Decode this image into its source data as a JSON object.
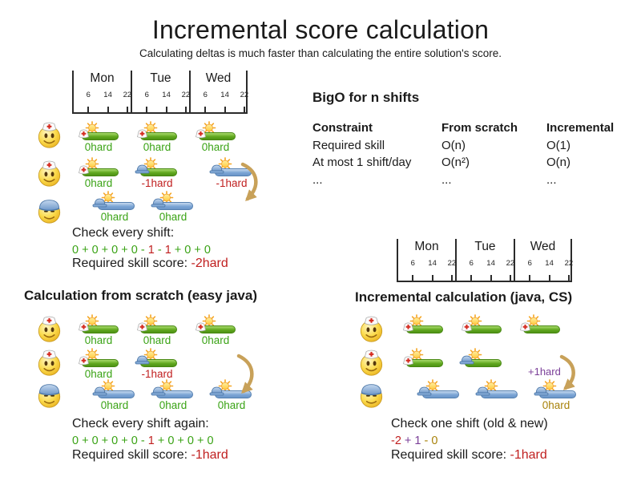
{
  "slide": {
    "title": "Incremental score calculation",
    "subtitle": "Calculating deltas is much faster than calculating the entire solution's score."
  },
  "timeline": {
    "days": [
      "Mon",
      "Tue",
      "Wed"
    ],
    "hours": [
      "6",
      "14",
      "22"
    ]
  },
  "bigo": {
    "heading": "BigO for n shifts",
    "columns": [
      "Constraint",
      "From scratch",
      "Incremental"
    ],
    "rows": [
      [
        "Required skill",
        "O(n)",
        "O(1)"
      ],
      [
        "At most 1 shift/day",
        "O(n²)",
        "O(n)"
      ],
      [
        "...",
        "...",
        "..."
      ]
    ]
  },
  "colors": {
    "ink": "#1b1b1b",
    "green": "#3aa315",
    "red": "#c01f1f",
    "purple": "#7b3f98",
    "gold": "#a8820a",
    "arrow": "#c8a159"
  },
  "panels": {
    "initial": {
      "heading": null,
      "annotation": null,
      "rows": [
        {
          "person": "nurse",
          "shifts": [
            {
              "day": 0,
              "slot": 0,
              "bar": "green",
              "hat": "cap",
              "label": "0hard",
              "color": "green"
            },
            {
              "day": 1,
              "slot": 0,
              "bar": "green",
              "hat": "cap",
              "label": "0hard",
              "color": "green"
            },
            {
              "day": 2,
              "slot": 0,
              "bar": "green",
              "hat": "cap",
              "label": "0hard",
              "color": "green"
            }
          ]
        },
        {
          "person": "nurse",
          "shifts": [
            {
              "day": 0,
              "slot": 0,
              "bar": "green",
              "hat": "cap",
              "label": "0hard",
              "color": "green"
            },
            {
              "day": 1,
              "slot": 0,
              "bar": "green",
              "hat": "helmet",
              "label": "-1hard",
              "color": "red"
            },
            {
              "day": 2,
              "slot": 1,
              "bar": "blue",
              "hat": "helmet",
              "label": "-1hard",
              "color": "red"
            }
          ]
        },
        {
          "person": "builder",
          "shifts": [
            {
              "day": 0,
              "slot": 1,
              "bar": "blue",
              "hat": "helmet",
              "label": "0hard",
              "color": "green"
            },
            {
              "day": 1,
              "slot": 1,
              "bar": "blue",
              "hat": "helmet",
              "label": "0hard",
              "color": "green"
            }
          ]
        }
      ],
      "lines": [
        {
          "size": "lg",
          "spans": [
            {
              "t": "Check every shift:",
              "c": "ink"
            }
          ]
        },
        {
          "size": "sm",
          "spans": [
            {
              "t": "0 + 0 + 0 + 0 - ",
              "c": "green"
            },
            {
              "t": "1",
              "c": "red"
            },
            {
              "t": " - ",
              "c": "green"
            },
            {
              "t": "1",
              "c": "red"
            },
            {
              "t": " + 0 + 0",
              "c": "green"
            }
          ]
        },
        {
          "size": "lg",
          "spans": [
            {
              "t": "Required skill score: ",
              "c": "ink"
            },
            {
              "t": "-2hard",
              "c": "red"
            }
          ]
        }
      ]
    },
    "scratch": {
      "heading": "Calculation from scratch (easy java)",
      "annotation": null,
      "rows": [
        {
          "person": "nurse",
          "shifts": [
            {
              "day": 0,
              "slot": 0,
              "bar": "green",
              "hat": "cap",
              "label": "0hard",
              "color": "green"
            },
            {
              "day": 1,
              "slot": 0,
              "bar": "green",
              "hat": "cap",
              "label": "0hard",
              "color": "green"
            },
            {
              "day": 2,
              "slot": 0,
              "bar": "green",
              "hat": "cap",
              "label": "0hard",
              "color": "green"
            }
          ]
        },
        {
          "person": "nurse",
          "shifts": [
            {
              "day": 0,
              "slot": 0,
              "bar": "green",
              "hat": "cap",
              "label": "0hard",
              "color": "green"
            },
            {
              "day": 1,
              "slot": 0,
              "bar": "green",
              "hat": "helmet",
              "label": "-1hard",
              "color": "red"
            }
          ]
        },
        {
          "person": "builder",
          "shifts": [
            {
              "day": 0,
              "slot": 1,
              "bar": "blue",
              "hat": "helmet",
              "label": "0hard",
              "color": "green"
            },
            {
              "day": 1,
              "slot": 1,
              "bar": "blue",
              "hat": "helmet",
              "label": "0hard",
              "color": "green"
            },
            {
              "day": 2,
              "slot": 1,
              "bar": "blue",
              "hat": "helmet",
              "label": "0hard",
              "color": "green"
            }
          ]
        }
      ],
      "lines": [
        {
          "size": "lg",
          "spans": [
            {
              "t": "Check every shift again:",
              "c": "ink"
            }
          ]
        },
        {
          "size": "sm",
          "spans": [
            {
              "t": "0 + 0 + 0 + 0 - ",
              "c": "green"
            },
            {
              "t": "1",
              "c": "red"
            },
            {
              "t": " + 0 + 0 + 0",
              "c": "green"
            }
          ]
        },
        {
          "size": "lg",
          "spans": [
            {
              "t": "Required skill score: ",
              "c": "ink"
            },
            {
              "t": "-1hard",
              "c": "red"
            }
          ]
        }
      ]
    },
    "incremental": {
      "heading": "Incremental calculation (java, CS)",
      "annotation": {
        "t": "+1hard",
        "c": "purple"
      },
      "rows": [
        {
          "person": "nurse",
          "shifts": [
            {
              "day": 0,
              "slot": 0,
              "bar": "green",
              "hat": "cap",
              "label": null,
              "color": null
            },
            {
              "day": 1,
              "slot": 0,
              "bar": "green",
              "hat": "cap",
              "label": null,
              "color": null
            },
            {
              "day": 2,
              "slot": 0,
              "bar": "green",
              "hat": "cap",
              "label": null,
              "color": null
            }
          ]
        },
        {
          "person": "nurse",
          "shifts": [
            {
              "day": 0,
              "slot": 0,
              "bar": "green",
              "hat": "cap",
              "label": null,
              "color": null
            },
            {
              "day": 1,
              "slot": 0,
              "bar": "green",
              "hat": "helmet",
              "label": null,
              "color": null
            }
          ]
        },
        {
          "person": "builder",
          "shifts": [
            {
              "day": 0,
              "slot": 1,
              "bar": "blue",
              "hat": "helmet",
              "label": null,
              "color": null
            },
            {
              "day": 1,
              "slot": 1,
              "bar": "blue",
              "hat": "helmet",
              "label": null,
              "color": null
            },
            {
              "day": 2,
              "slot": 1,
              "bar": "blue",
              "hat": "helmet",
              "label": "0hard",
              "color": "gold"
            }
          ]
        }
      ],
      "lines": [
        {
          "size": "lg",
          "spans": [
            {
              "t": "Check one shift (old & new)",
              "c": "ink"
            }
          ]
        },
        {
          "size": "sm",
          "spans": [
            {
              "t": "-2",
              "c": "red"
            },
            {
              "t": " + 1",
              "c": "purple"
            },
            {
              "t": " - 0",
              "c": "gold"
            }
          ]
        },
        {
          "size": "lg",
          "spans": [
            {
              "t": "Required skill score: ",
              "c": "ink"
            },
            {
              "t": "-1hard",
              "c": "red"
            }
          ]
        }
      ]
    }
  }
}
